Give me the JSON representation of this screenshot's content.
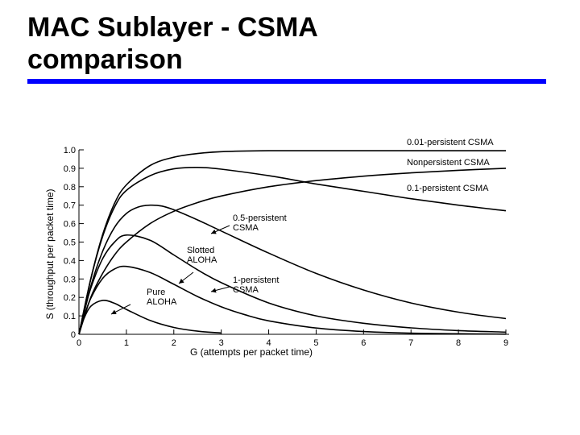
{
  "slide": {
    "title_line1": "MAC Sublayer - CSMA",
    "title_line2": "comparison",
    "rule_color": "#0000ff"
  },
  "chart_data": {
    "type": "line",
    "title": "",
    "xlabel": "G (attempts per packet time)",
    "ylabel": "S (throughput per packet time)",
    "xlim": [
      0,
      9
    ],
    "ylim": [
      0,
      1.0
    ],
    "x_ticks": [
      "0",
      "1",
      "2",
      "3",
      "4",
      "5",
      "6",
      "7",
      "8",
      "9"
    ],
    "y_ticks": [
      "0",
      "0.1",
      "0.2",
      "0.3",
      "0.4",
      "0.5",
      "0.6",
      "0.7",
      "0.8",
      "0.9",
      "1.0"
    ],
    "grid": false,
    "series": [
      {
        "name": "Pure ALOHA",
        "label": "Pure\nALOHA",
        "x": [
          0,
          0.1,
          0.25,
          0.5,
          0.75,
          1,
          1.5,
          2,
          2.5,
          3
        ],
        "y": [
          0,
          0.082,
          0.152,
          0.184,
          0.168,
          0.135,
          0.075,
          0.037,
          0.017,
          0.007
        ]
      },
      {
        "name": "Slotted ALOHA",
        "label": "Slotted\nALOHA",
        "x": [
          0,
          0.1,
          0.25,
          0.5,
          0.75,
          1,
          1.5,
          2,
          2.5,
          3,
          3.5,
          4,
          5,
          6,
          7,
          8,
          9
        ],
        "y": [
          0,
          0.09,
          0.195,
          0.303,
          0.354,
          0.368,
          0.335,
          0.271,
          0.205,
          0.149,
          0.106,
          0.073,
          0.034,
          0.015,
          0.006,
          0.003,
          0.001
        ]
      },
      {
        "name": "1-persistent CSMA",
        "label": "1-persistent\nCSMA",
        "x": [
          0,
          0.1,
          0.25,
          0.5,
          0.75,
          1,
          1.5,
          2,
          2.5,
          3,
          4,
          5,
          6,
          7,
          8,
          9
        ],
        "y": [
          0,
          0.11,
          0.25,
          0.41,
          0.5,
          0.538,
          0.51,
          0.43,
          0.35,
          0.28,
          0.17,
          0.1,
          0.06,
          0.035,
          0.02,
          0.012
        ]
      },
      {
        "name": "0.5-persistent CSMA",
        "label": "0.5-persistent\nCSMA",
        "x": [
          0,
          0.25,
          0.5,
          0.75,
          1,
          1.25,
          1.5,
          1.75,
          2,
          2.5,
          3,
          4,
          5,
          6,
          7,
          8,
          9
        ],
        "y": [
          0,
          0.26,
          0.45,
          0.58,
          0.655,
          0.69,
          0.7,
          0.695,
          0.675,
          0.62,
          0.56,
          0.44,
          0.33,
          0.24,
          0.17,
          0.12,
          0.085
        ]
      },
      {
        "name": "0.1-persistent CSMA",
        "label": "0.1-persistent CSMA",
        "x": [
          0,
          0.25,
          0.5,
          0.75,
          1,
          1.5,
          2,
          2.5,
          3,
          4,
          5,
          6,
          7,
          8,
          9
        ],
        "y": [
          0,
          0.3,
          0.53,
          0.69,
          0.78,
          0.86,
          0.897,
          0.905,
          0.895,
          0.86,
          0.815,
          0.775,
          0.735,
          0.7,
          0.67
        ]
      },
      {
        "name": "Nonpersistent CSMA",
        "label": "Nonpersistent CSMA",
        "x": [
          0,
          0.25,
          0.5,
          0.75,
          1,
          1.5,
          2,
          2.5,
          3,
          4,
          5,
          6,
          7,
          8,
          9
        ],
        "y": [
          0,
          0.2,
          0.33,
          0.43,
          0.5,
          0.6,
          0.667,
          0.714,
          0.75,
          0.8,
          0.833,
          0.857,
          0.875,
          0.889,
          0.9
        ]
      },
      {
        "name": "0.01-persistent CSMA",
        "label": "0.01-persistent CSMA",
        "x": [
          0,
          0.25,
          0.5,
          0.75,
          1,
          1.5,
          2,
          2.5,
          3,
          4,
          5,
          6,
          7,
          8,
          9
        ],
        "y": [
          0,
          0.3,
          0.54,
          0.71,
          0.81,
          0.915,
          0.96,
          0.98,
          0.99,
          0.995,
          0.995,
          0.995,
          0.995,
          0.995,
          0.995
        ]
      }
    ]
  }
}
